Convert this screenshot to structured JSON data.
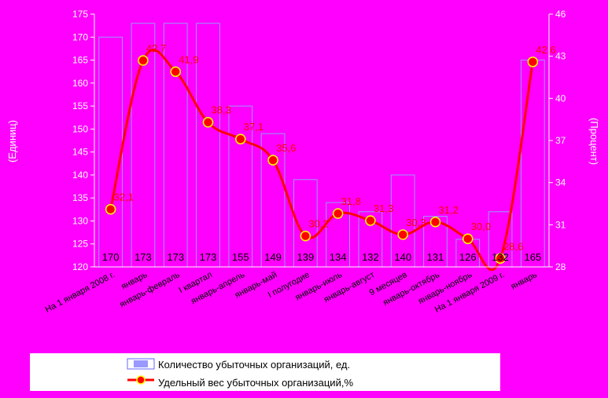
{
  "chart_data": {
    "type": "bar",
    "categories": [
      "На 1 января 2008 г.",
      "январь",
      "январь-февраль",
      "I квартал",
      "январь-апрель",
      "январь-май",
      "I полугодие",
      "январь-июль",
      "январь-август",
      "9 месяцев",
      "январь-октябрь",
      "январь-ноябрь",
      "На 1 января 2009 г.",
      "январь"
    ],
    "series": [
      {
        "name": "Количество убыточных организаций, ед.",
        "type": "bar",
        "axis": "left",
        "values": [
          170,
          173,
          173,
          173,
          155,
          149,
          139,
          134,
          132,
          140,
          131,
          126,
          132,
          165
        ],
        "labels": [
          "170",
          "173",
          "173",
          "173",
          "155",
          "149",
          "139",
          "134",
          "132",
          "140",
          "131",
          "126",
          "132",
          "165"
        ]
      },
      {
        "name": "Удельный вес убыточных организаций,%",
        "type": "line",
        "axis": "right",
        "values": [
          32.1,
          42.7,
          41.9,
          38.3,
          37.1,
          35.6,
          30.2,
          31.8,
          31.3,
          30.3,
          31.2,
          30.0,
          28.6,
          42.6
        ],
        "labels": [
          "32,1",
          "42,7",
          "41,9",
          "38,3",
          "37,1",
          "35,6",
          "30,2",
          "31,8",
          "31,3",
          "30,3",
          "31,2",
          "30,0",
          "28,6",
          "42,6"
        ]
      }
    ],
    "y_left": {
      "label": "(Единиц)",
      "ylim": [
        120,
        175
      ],
      "ticks": [
        "120",
        "125",
        "130",
        "135",
        "140",
        "145",
        "150",
        "155",
        "160",
        "165",
        "170",
        "175"
      ]
    },
    "y_right": {
      "label": "(Процент)",
      "ylim": [
        28,
        46
      ],
      "ticks": [
        "28",
        "31",
        "34",
        "37",
        "40",
        "43",
        "46"
      ]
    },
    "legend_position": "bottom",
    "grid": false
  },
  "colors": {
    "background": "#FF00FF",
    "bar_fill": "#FF00FF",
    "bar_stroke": "#9999FF",
    "line": "#FF0000",
    "marker_fill": "#FF0000",
    "marker_stroke": "#FFFF00",
    "axis": "#FFFFFF",
    "legend_bg": "#FFFFFF"
  }
}
